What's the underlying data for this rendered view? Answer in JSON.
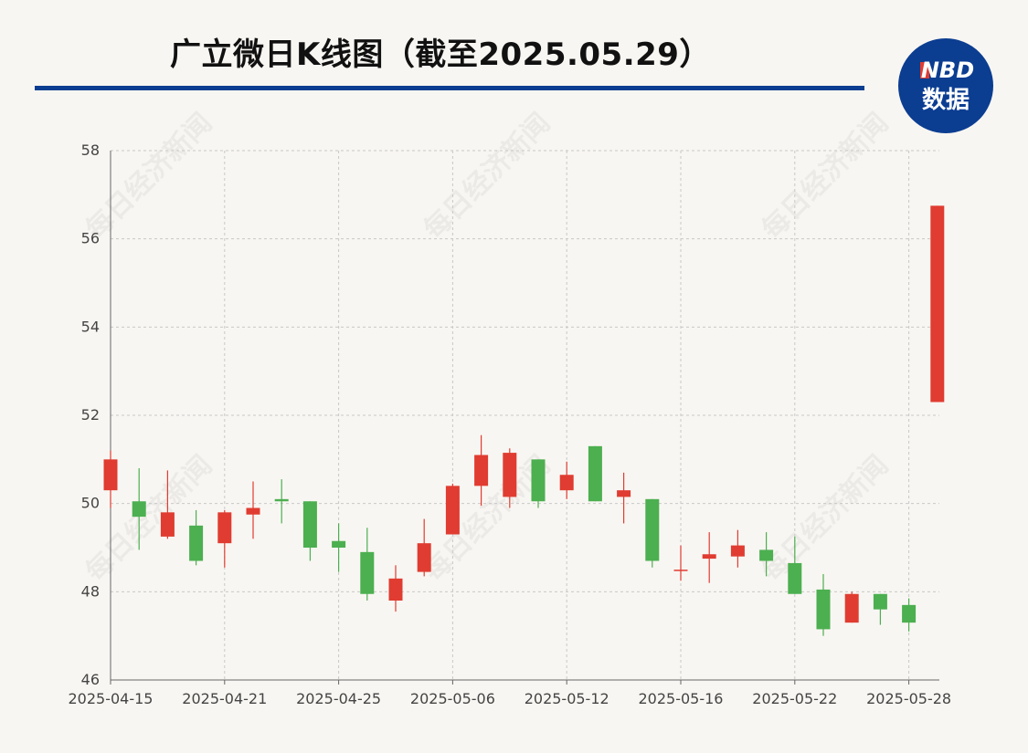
{
  "header": {
    "title": "广立微日K线图（截至2025.05.29）",
    "rule_color": "#0b3d91"
  },
  "logo": {
    "text_top": "NBD",
    "text_bottom": "数据",
    "bg_color": "#0b3d91",
    "accent_color": "#e03c31"
  },
  "watermark": {
    "text": "每日经济新闻"
  },
  "colors": {
    "up": "#e03c31",
    "down": "#4caf50"
  },
  "chart_data": {
    "type": "candlestick",
    "title": "广立微日K线图（截至2025.05.29）",
    "xlabel": "",
    "ylabel": "",
    "ylim": [
      46,
      58
    ],
    "yticks": [
      46,
      48,
      50,
      52,
      54,
      56,
      58
    ],
    "grid": true,
    "xtick_labels": [
      {
        "label": "2025-04-15",
        "index": 0
      },
      {
        "label": "2025-04-21",
        "index": 4
      },
      {
        "label": "2025-04-25",
        "index": 8
      },
      {
        "label": "2025-05-06",
        "index": 12
      },
      {
        "label": "2025-05-12",
        "index": 16
      },
      {
        "label": "2025-05-16",
        "index": 20
      },
      {
        "label": "2025-05-22",
        "index": 24
      },
      {
        "label": "2025-05-28",
        "index": 28
      }
    ],
    "candles": [
      {
        "date": "2025-04-15",
        "open": 50.3,
        "close": 51.0,
        "high": 51.2,
        "low": 49.9
      },
      {
        "date": "2025-04-16",
        "open": 50.05,
        "close": 49.7,
        "high": 50.8,
        "low": 48.95
      },
      {
        "date": "2025-04-17",
        "open": 49.25,
        "close": 49.8,
        "high": 50.75,
        "low": 49.2
      },
      {
        "date": "2025-04-18",
        "open": 49.5,
        "close": 48.7,
        "high": 49.85,
        "low": 48.6
      },
      {
        "date": "2025-04-21",
        "open": 49.1,
        "close": 49.8,
        "high": 49.85,
        "low": 48.55
      },
      {
        "date": "2025-04-22",
        "open": 49.75,
        "close": 49.9,
        "high": 50.5,
        "low": 49.2
      },
      {
        "date": "2025-04-23",
        "open": 50.1,
        "close": 50.05,
        "high": 50.55,
        "low": 49.55
      },
      {
        "date": "2025-04-24",
        "open": 50.05,
        "close": 49.0,
        "high": 50.05,
        "low": 48.7
      },
      {
        "date": "2025-04-25",
        "open": 49.15,
        "close": 49.0,
        "high": 49.55,
        "low": 48.45
      },
      {
        "date": "2025-04-28",
        "open": 48.9,
        "close": 47.95,
        "high": 49.45,
        "low": 47.8
      },
      {
        "date": "2025-04-29",
        "open": 47.8,
        "close": 48.3,
        "high": 48.6,
        "low": 47.55
      },
      {
        "date": "2025-04-30",
        "open": 48.45,
        "close": 49.1,
        "high": 49.65,
        "low": 48.35
      },
      {
        "date": "2025-05-06",
        "open": 49.3,
        "close": 50.4,
        "high": 50.45,
        "low": 49.3
      },
      {
        "date": "2025-05-07",
        "open": 50.4,
        "close": 51.1,
        "high": 51.55,
        "low": 49.95
      },
      {
        "date": "2025-05-08",
        "open": 50.15,
        "close": 51.15,
        "high": 51.25,
        "low": 49.9
      },
      {
        "date": "2025-05-09",
        "open": 51.0,
        "close": 50.05,
        "high": 51.0,
        "low": 49.9
      },
      {
        "date": "2025-05-12",
        "open": 50.3,
        "close": 50.65,
        "high": 50.95,
        "low": 50.1
      },
      {
        "date": "2025-05-13",
        "open": 51.3,
        "close": 50.05,
        "high": 51.3,
        "low": 50.05
      },
      {
        "date": "2025-05-14",
        "open": 50.15,
        "close": 50.3,
        "high": 50.7,
        "low": 49.55
      },
      {
        "date": "2025-05-15",
        "open": 50.1,
        "close": 48.7,
        "high": 50.1,
        "low": 48.55
      },
      {
        "date": "2025-05-16",
        "open": 48.5,
        "close": 48.5,
        "high": 49.05,
        "low": 48.25
      },
      {
        "date": "2025-05-19",
        "open": 48.75,
        "close": 48.85,
        "high": 49.35,
        "low": 48.2
      },
      {
        "date": "2025-05-20",
        "open": 48.8,
        "close": 49.05,
        "high": 49.4,
        "low": 48.55
      },
      {
        "date": "2025-05-21",
        "open": 48.95,
        "close": 48.7,
        "high": 49.35,
        "low": 48.35
      },
      {
        "date": "2025-05-22",
        "open": 48.65,
        "close": 47.95,
        "high": 49.25,
        "low": 47.95
      },
      {
        "date": "2025-05-23",
        "open": 48.05,
        "close": 47.15,
        "high": 48.4,
        "low": 47.0
      },
      {
        "date": "2025-05-26",
        "open": 47.3,
        "close": 47.95,
        "high": 48.0,
        "low": 47.3
      },
      {
        "date": "2025-05-27",
        "open": 47.95,
        "close": 47.6,
        "high": 47.95,
        "low": 47.25
      },
      {
        "date": "2025-05-28",
        "open": 47.7,
        "close": 47.3,
        "high": 47.85,
        "low": 47.1
      },
      {
        "date": "2025-05-29",
        "open": 52.3,
        "close": 56.75,
        "high": 56.75,
        "low": 52.3
      }
    ]
  }
}
